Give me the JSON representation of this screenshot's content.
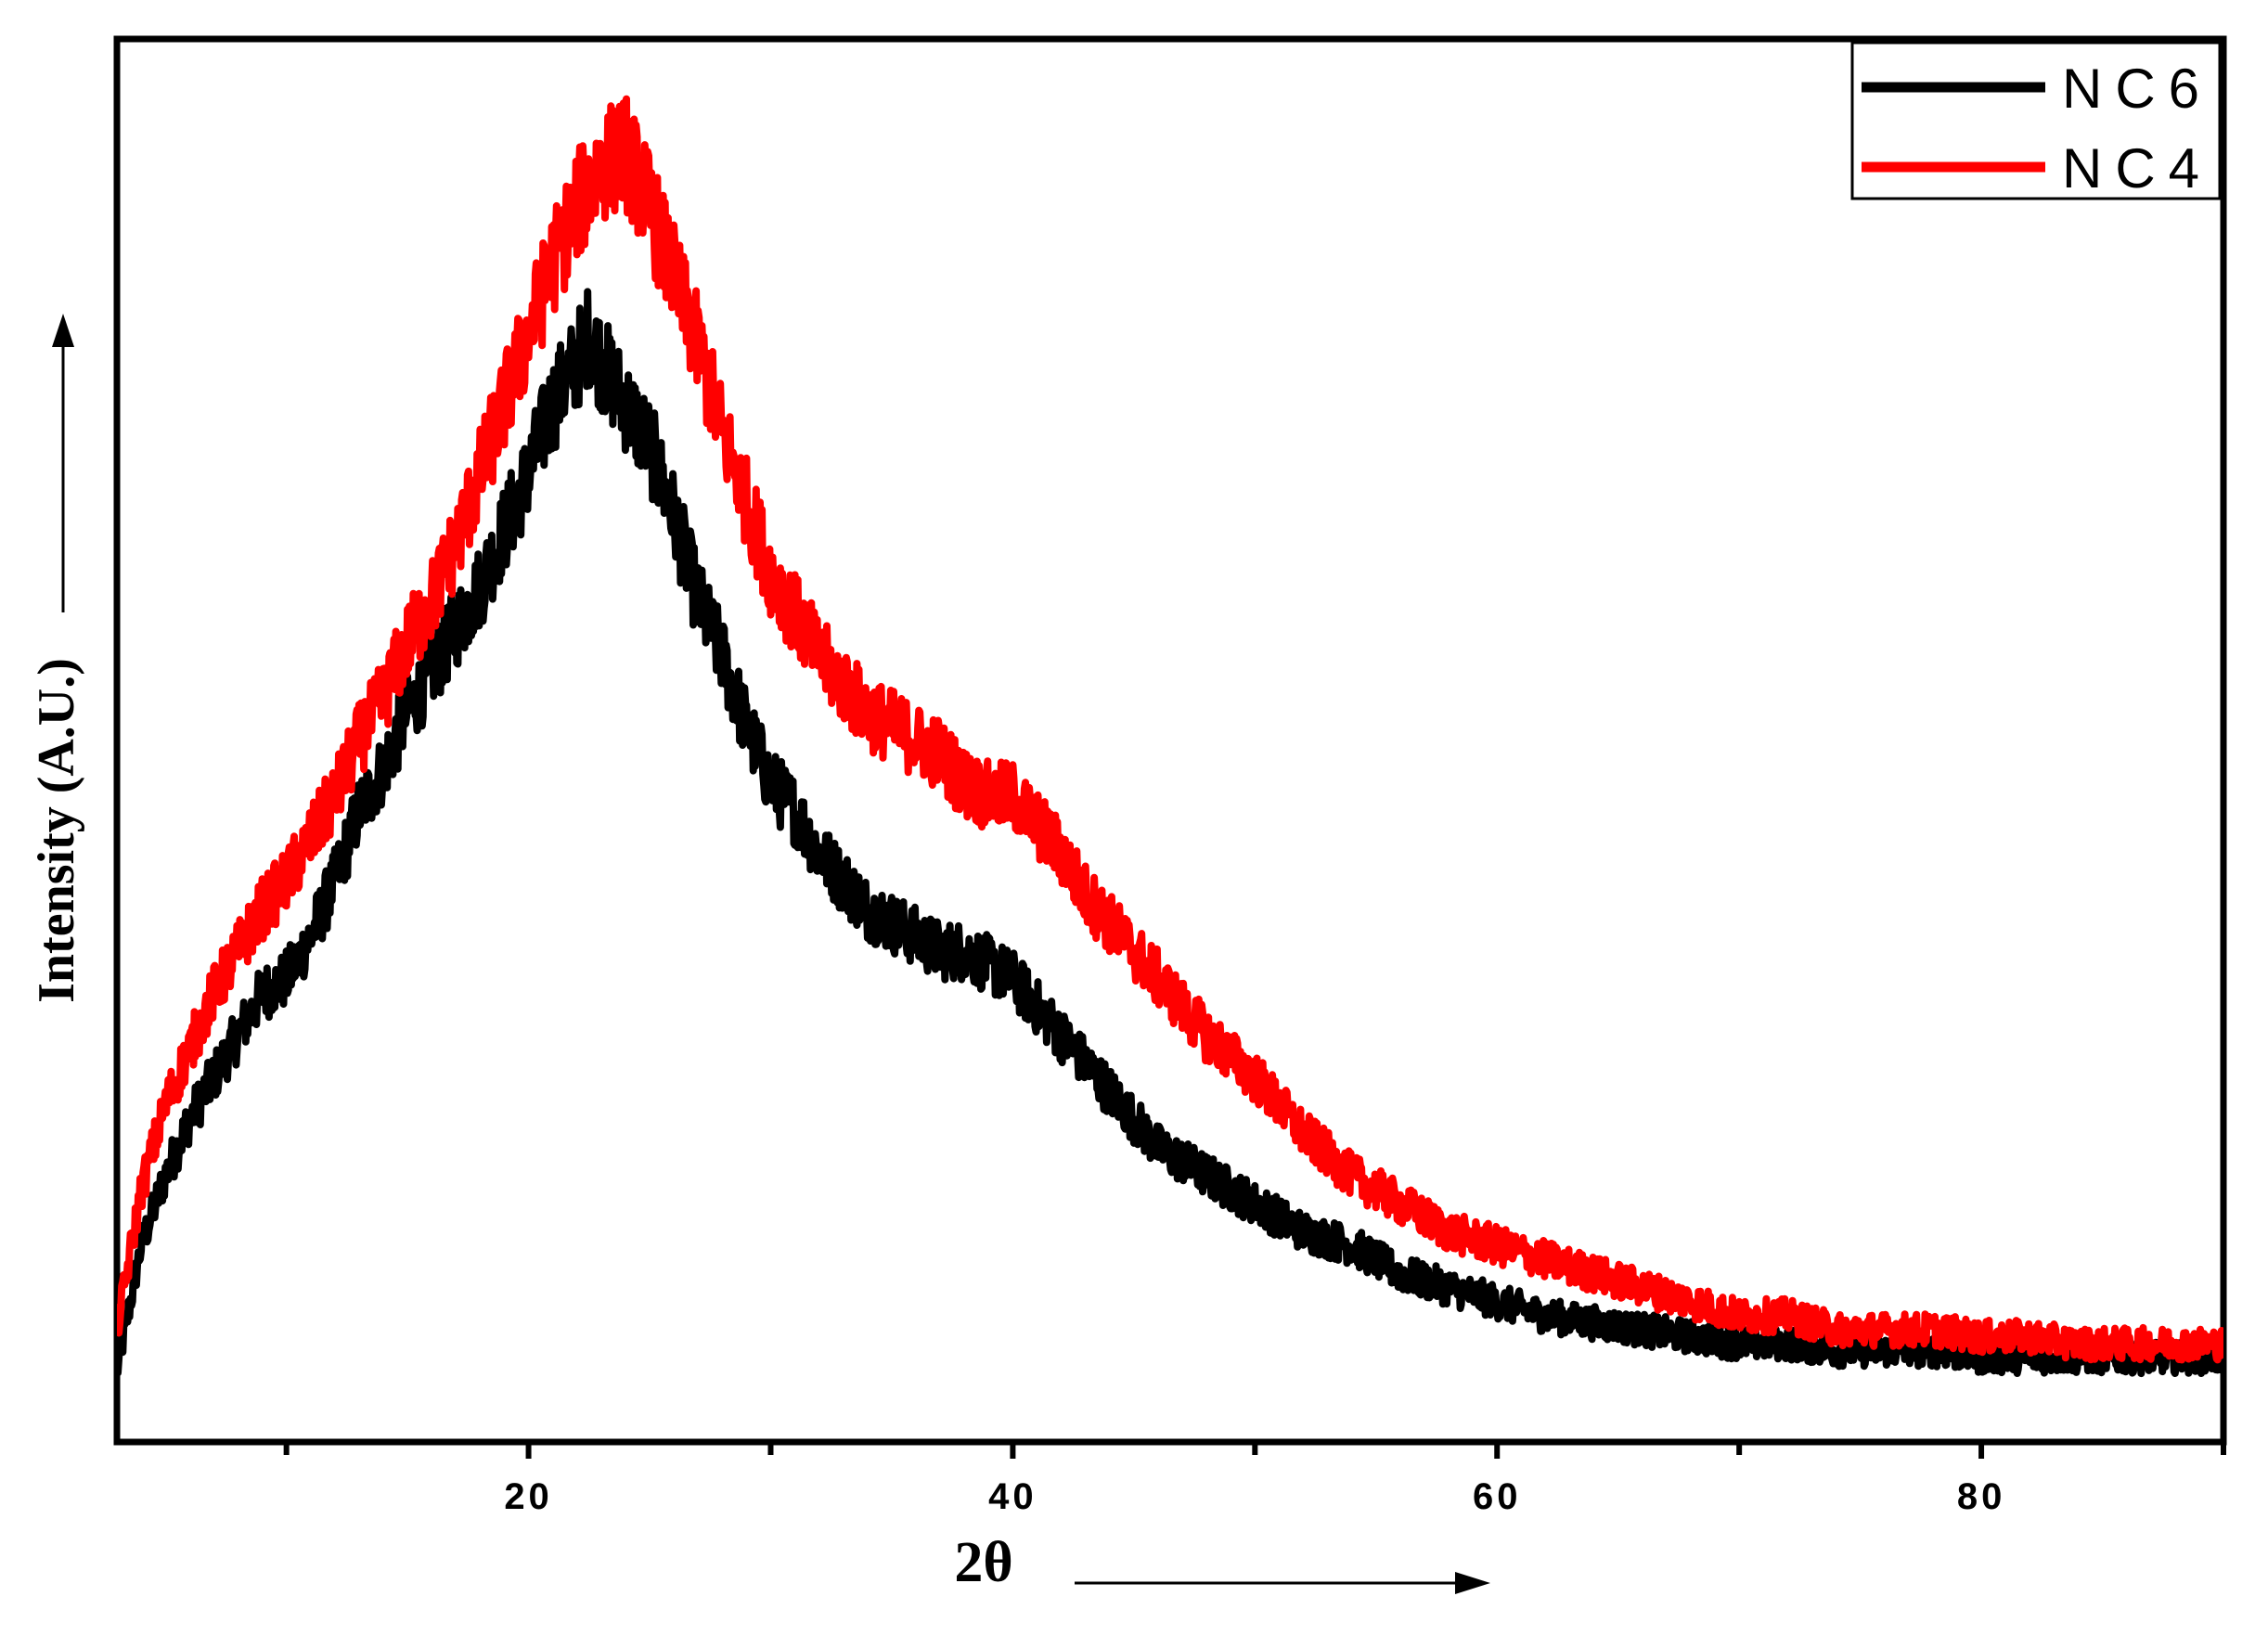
{
  "chart_data": {
    "type": "line",
    "title": "",
    "xlabel": "2θ",
    "ylabel": "Intensity (A.U.)",
    "xlim": [
      3,
      90
    ],
    "ylim": [
      0,
      100
    ],
    "x_ticks": [
      20,
      40,
      60,
      80
    ],
    "x_minor_ticks": [
      10,
      30,
      50,
      70,
      90
    ],
    "y_tick_labels": "none",
    "grid": false,
    "legend_position": "top-right",
    "axis_arrows": true,
    "series": [
      {
        "name": "NC6",
        "color": "#000000",
        "x": [
          3,
          4,
          5,
          6,
          7,
          8,
          9,
          10,
          11,
          12,
          13,
          14,
          15,
          16,
          17,
          18,
          19,
          20,
          21,
          22,
          22.5,
          23,
          24,
          25,
          26,
          27,
          28,
          29,
          30,
          31,
          32,
          33,
          34,
          35,
          36,
          37,
          38,
          39,
          40,
          41,
          42,
          43,
          44,
          45,
          46,
          47,
          48,
          50,
          52,
          54,
          56,
          58,
          60,
          62,
          64,
          66,
          68,
          70,
          72,
          74,
          76,
          78,
          80,
          82,
          84,
          86,
          88,
          90
        ],
        "y": [
          5,
          14,
          19,
          23,
          26,
          29,
          32,
          33,
          36,
          40,
          45,
          48,
          52,
          55,
          58,
          61,
          65,
          69,
          74,
          77,
          79,
          77,
          74,
          71,
          66,
          60,
          56,
          51,
          47,
          45,
          42,
          40,
          38,
          37,
          36,
          35,
          35,
          34,
          33,
          31,
          29,
          27,
          25,
          23,
          21,
          20,
          19,
          17,
          15,
          14,
          12,
          11,
          10,
          9,
          8.5,
          8,
          7.5,
          7,
          7,
          6.5,
          6.5,
          6.5,
          6,
          6,
          6,
          6,
          6,
          6
        ]
      },
      {
        "name": "NC4",
        "color": "#ff0000",
        "x": [
          3,
          4,
          5,
          6,
          7,
          8,
          9,
          10,
          11,
          12,
          13,
          14,
          15,
          16,
          17,
          18,
          19,
          20,
          21,
          22,
          23,
          24,
          25,
          26,
          27,
          28,
          29,
          30,
          31,
          32,
          33,
          34,
          35,
          36,
          37,
          38,
          39,
          40,
          41,
          42,
          43,
          44,
          45,
          46,
          47,
          48,
          50,
          52,
          54,
          56,
          58,
          60,
          62,
          64,
          66,
          68,
          70,
          72,
          74,
          76,
          78,
          80,
          82,
          84,
          86,
          88,
          90
        ],
        "y": [
          8,
          18,
          24,
          28,
          32,
          35,
          38,
          40,
          43,
          46,
          50,
          53,
          57,
          60,
          64,
          69,
          74,
          79,
          84,
          88,
          91,
          92,
          88,
          83,
          78,
          72,
          67,
          62,
          59,
          56,
          54,
          52,
          51,
          50,
          49,
          47,
          46,
          46,
          44,
          42,
          39,
          37,
          35,
          33,
          31,
          29,
          26,
          22,
          19,
          17,
          15,
          14,
          13,
          12,
          11,
          10,
          9,
          9,
          8,
          8,
          8,
          7.5,
          7.5,
          7,
          7,
          7,
          7
        ]
      }
    ]
  },
  "legend": [
    {
      "label": "NC6",
      "color": "#000000"
    },
    {
      "label": "NC4",
      "color": "#ff0000"
    }
  ]
}
